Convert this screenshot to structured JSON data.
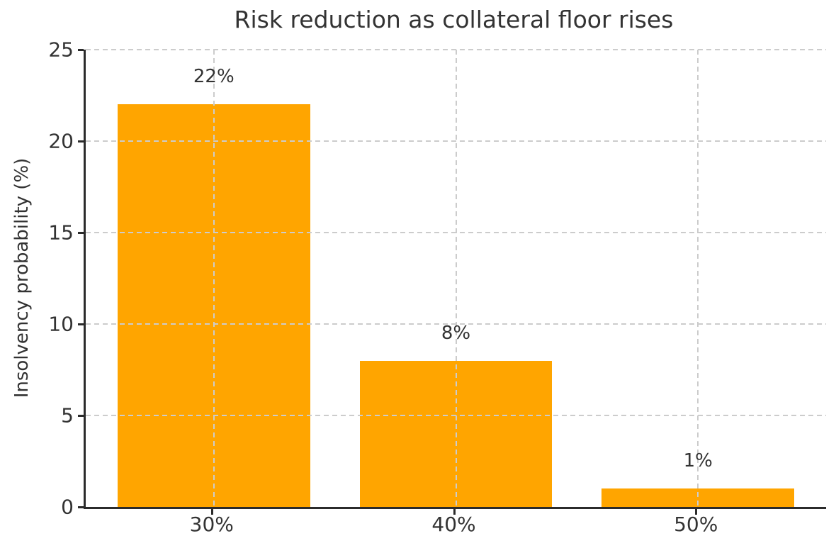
{
  "chart_data": {
    "type": "bar",
    "title": "Risk reduction as collateral floor rises",
    "xlabel": "",
    "ylabel": "Insolvency probability (%)",
    "categories": [
      "30%",
      "40%",
      "50%"
    ],
    "values": [
      22,
      8,
      1
    ],
    "value_labels": [
      "22%",
      "8%",
      "1%"
    ],
    "ylim": [
      0,
      25
    ],
    "yticks": [
      "0",
      "5",
      "10",
      "15",
      "20",
      "25"
    ],
    "ytick_values": [
      0,
      5,
      10,
      15,
      20,
      25
    ],
    "grid": "on",
    "grid_style": "dashed",
    "legend": "none",
    "bar_color": "#FFA500",
    "text_color": "#333333",
    "grid_color": "#cccccc",
    "spine_color": "#2b2b2b",
    "background_color": "#ffffff"
  }
}
